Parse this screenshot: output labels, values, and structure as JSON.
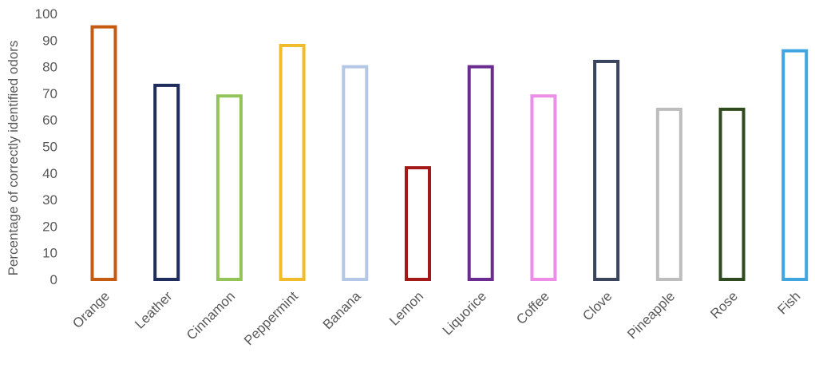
{
  "chart_data": {
    "type": "bar",
    "ylabel": "Percentage of correctly identified odors",
    "xlabel": "",
    "ylim": [
      0,
      100
    ],
    "yticks": [
      "0",
      "10",
      "20",
      "30",
      "40",
      "50",
      "60",
      "70",
      "80",
      "90",
      "100"
    ],
    "grid": false,
    "categories": [
      "Orange",
      "Leather",
      "Cinnamon",
      "Peppermint",
      "Banana",
      "Lemon",
      "Liquorice",
      "Coffee",
      "Clove",
      "Pineapple",
      "Rose",
      "Fish"
    ],
    "values": [
      95,
      73,
      69,
      88,
      80,
      42,
      80,
      69,
      82,
      64,
      64,
      86
    ],
    "colors": [
      "#c55a11",
      "#1f2d5c",
      "#92c45a",
      "#f0bc2c",
      "#b4c7e7",
      "#a31818",
      "#6a2c91",
      "#ec8ee8",
      "#3a445c",
      "#bdbdbd",
      "#2f4a1e",
      "#41a6e0"
    ],
    "bar_style": "outline"
  }
}
